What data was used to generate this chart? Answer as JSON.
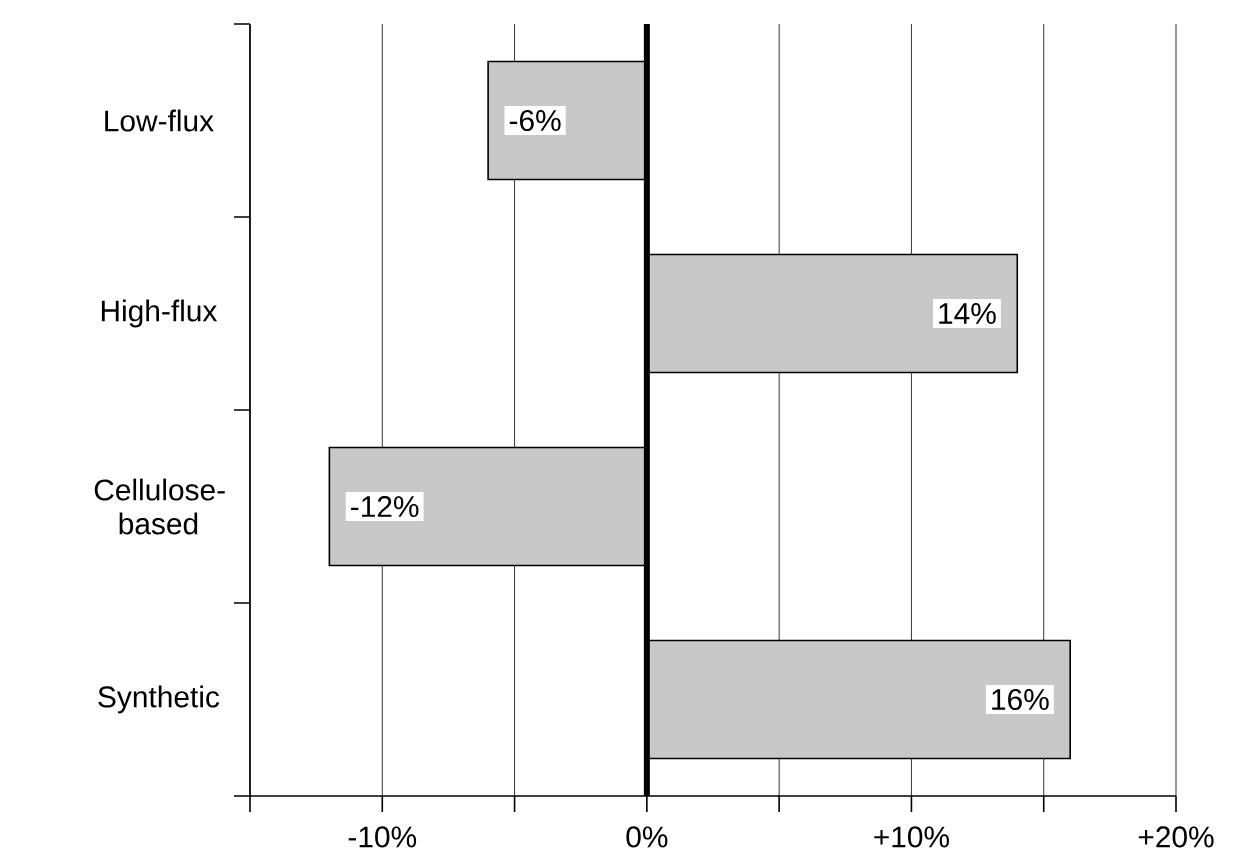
{
  "chart_data": {
    "type": "bar",
    "orientation": "horizontal",
    "categories": [
      "Low-flux",
      "High-flux",
      "Cellulose-based",
      "Synthetic"
    ],
    "values": [
      -6,
      14,
      -12,
      16
    ],
    "value_labels": [
      "-6%",
      "14%",
      "-12%",
      "16%"
    ],
    "color": "#c8c8c8",
    "xlim": [
      -15,
      20
    ],
    "xticks": [
      {
        "value": -15,
        "label": null
      },
      {
        "value": -10,
        "label": "-10%"
      },
      {
        "value": -5,
        "label": null
      },
      {
        "value": 0,
        "label": "0%"
      },
      {
        "value": 5,
        "label": null
      },
      {
        "value": 10,
        "label": "+10%"
      },
      {
        "value": 15,
        "label": null
      },
      {
        "value": 20,
        "label": "+20%"
      }
    ],
    "grid": "x",
    "ref_lines": [
      {
        "axis": "x",
        "value": 0,
        "color": "#000000"
      }
    ]
  }
}
